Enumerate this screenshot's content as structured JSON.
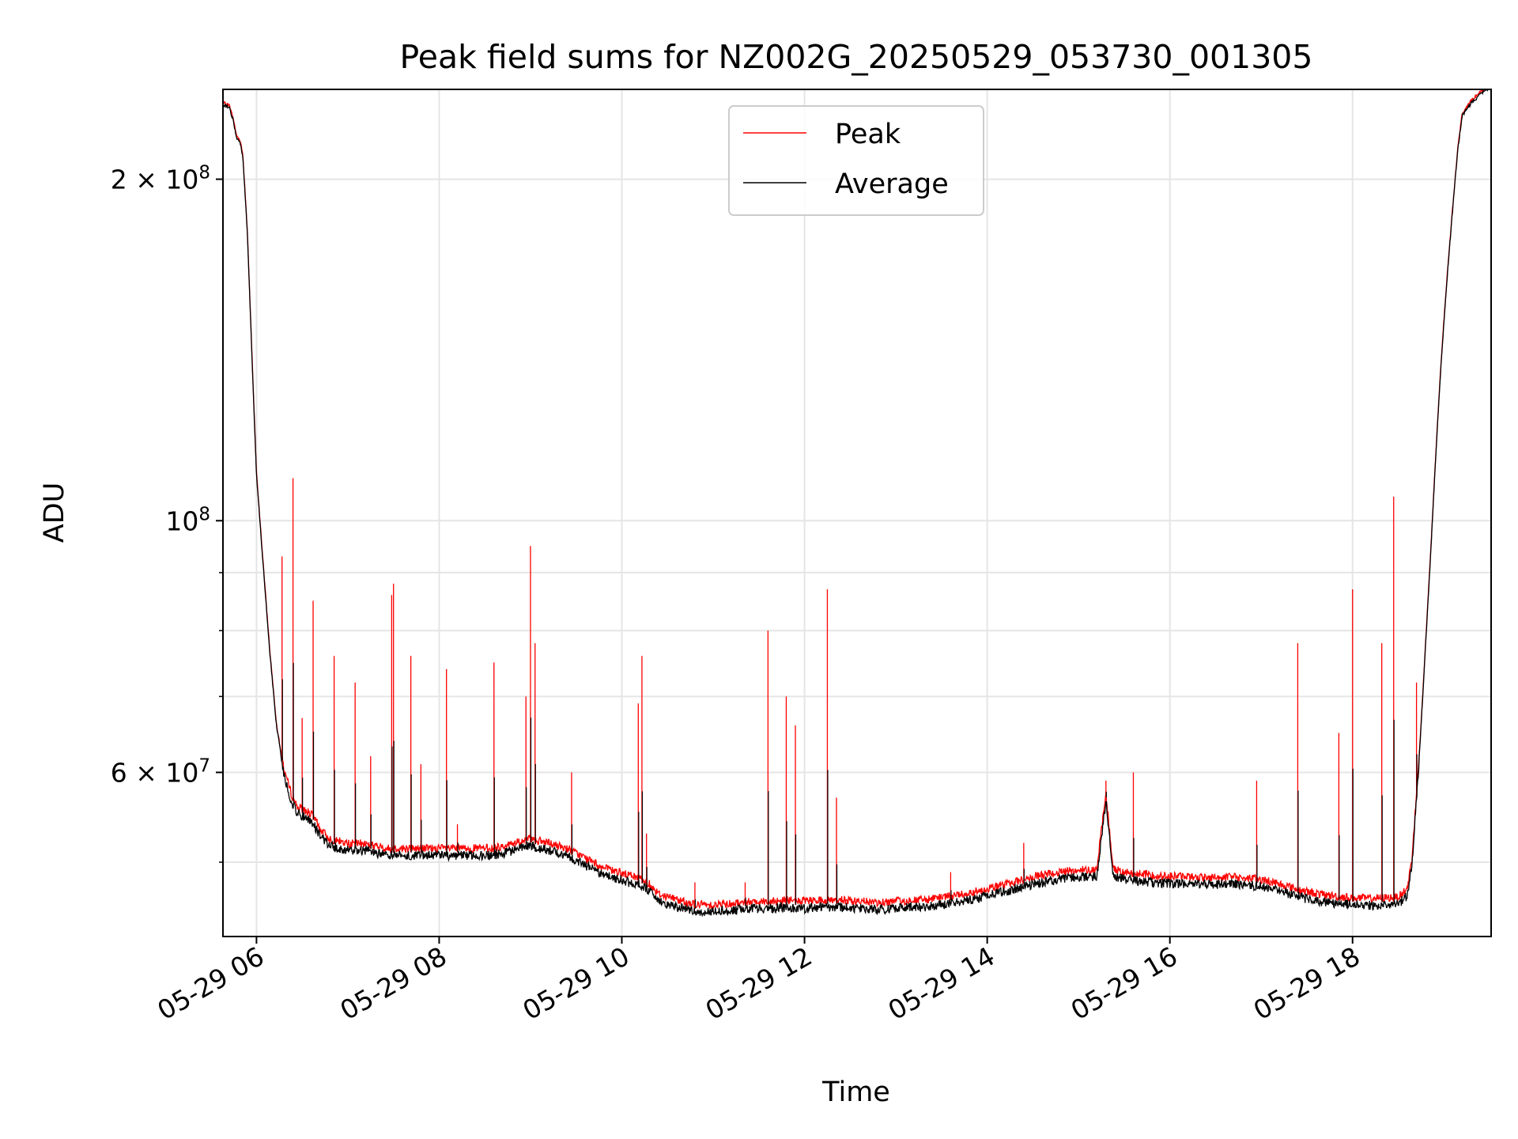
{
  "chart_data": {
    "type": "line",
    "title": "Peak field sums for NZ002G_20250529_053730_001305",
    "xlabel": "Time",
    "ylabel": "ADU",
    "yscale": "log",
    "ylim": [
      43000000,
      240000000
    ],
    "xlim_hours": [
      5.633,
      19.517
    ],
    "grid": true,
    "legend": {
      "position": "upper center",
      "entries": [
        "Peak",
        "Average"
      ]
    },
    "x_ticks": [
      {
        "label": "05-29 06",
        "hour": 6
      },
      {
        "label": "05-29 08",
        "hour": 8
      },
      {
        "label": "05-29 10",
        "hour": 10
      },
      {
        "label": "05-29 12",
        "hour": 12
      },
      {
        "label": "05-29 14",
        "hour": 14
      },
      {
        "label": "05-29 16",
        "hour": 16
      },
      {
        "label": "05-29 18",
        "hour": 18
      }
    ],
    "y_ticks": [
      {
        "mantissa": "2",
        "times": "×",
        "base": "10",
        "exp": "8",
        "value": 200000000
      },
      {
        "mantissa": "",
        "times": "",
        "base": "10",
        "exp": "8",
        "value": 100000000
      },
      {
        "mantissa": "6",
        "times": "×",
        "base": "10",
        "exp": "7",
        "value": 60000000
      }
    ],
    "y_minor_ticks": [
      50000000,
      70000000,
      80000000,
      90000000
    ],
    "series": [
      {
        "name": "Average",
        "color": "#000000",
        "points": [
          [
            5.633,
            233000000
          ],
          [
            5.7,
            232000000
          ],
          [
            5.75,
            225000000
          ],
          [
            5.78,
            218000000
          ],
          [
            5.82,
            216000000
          ],
          [
            5.85,
            210000000
          ],
          [
            5.9,
            180000000
          ],
          [
            5.95,
            140000000
          ],
          [
            6.0,
            110000000
          ],
          [
            6.08,
            90000000
          ],
          [
            6.15,
            76000000
          ],
          [
            6.22,
            66000000
          ],
          [
            6.3,
            60000000
          ],
          [
            6.38,
            57000000
          ],
          [
            6.45,
            55500000
          ],
          [
            6.55,
            55000000
          ],
          [
            6.62,
            54500000
          ],
          [
            6.7,
            53000000
          ],
          [
            6.8,
            52000000
          ],
          [
            7.0,
            51500000
          ],
          [
            7.2,
            51500000
          ],
          [
            7.4,
            51000000
          ],
          [
            7.6,
            51000000
          ],
          [
            7.8,
            51000000
          ],
          [
            8.0,
            51000000
          ],
          [
            8.2,
            51000000
          ],
          [
            8.4,
            51000000
          ],
          [
            8.6,
            51000000
          ],
          [
            8.8,
            51500000
          ],
          [
            9.0,
            52000000
          ],
          [
            9.2,
            51500000
          ],
          [
            9.4,
            51000000
          ],
          [
            9.6,
            50000000
          ],
          [
            9.8,
            49000000
          ],
          [
            10.0,
            48500000
          ],
          [
            10.2,
            48000000
          ],
          [
            10.3,
            47500000
          ],
          [
            10.4,
            46500000
          ],
          [
            10.6,
            46000000
          ],
          [
            10.8,
            45500000
          ],
          [
            11.0,
            45500000
          ],
          [
            11.2,
            45600000
          ],
          [
            11.4,
            45800000
          ],
          [
            11.6,
            45800000
          ],
          [
            11.8,
            45900000
          ],
          [
            12.0,
            45800000
          ],
          [
            12.2,
            45900000
          ],
          [
            12.4,
            45900000
          ],
          [
            12.6,
            45800000
          ],
          [
            12.8,
            45700000
          ],
          [
            13.0,
            45800000
          ],
          [
            13.2,
            45900000
          ],
          [
            13.4,
            46000000
          ],
          [
            13.6,
            46300000
          ],
          [
            13.8,
            46600000
          ],
          [
            14.0,
            47000000
          ],
          [
            14.2,
            47400000
          ],
          [
            14.4,
            47900000
          ],
          [
            14.6,
            48300000
          ],
          [
            14.8,
            48600000
          ],
          [
            15.0,
            48800000
          ],
          [
            15.2,
            48900000
          ],
          [
            15.3,
            57000000
          ],
          [
            15.38,
            48900000
          ],
          [
            15.5,
            48600000
          ],
          [
            15.7,
            48400000
          ],
          [
            15.9,
            48200000
          ],
          [
            16.1,
            48200000
          ],
          [
            16.3,
            48100000
          ],
          [
            16.5,
            48100000
          ],
          [
            16.7,
            48100000
          ],
          [
            16.9,
            48000000
          ],
          [
            17.1,
            47700000
          ],
          [
            17.3,
            47200000
          ],
          [
            17.5,
            46700000
          ],
          [
            17.7,
            46400000
          ],
          [
            17.9,
            46200000
          ],
          [
            18.1,
            46100000
          ],
          [
            18.3,
            46100000
          ],
          [
            18.5,
            46200000
          ],
          [
            18.6,
            47000000
          ],
          [
            18.65,
            50000000
          ],
          [
            18.7,
            57000000
          ],
          [
            18.75,
            66000000
          ],
          [
            18.8,
            78000000
          ],
          [
            18.85,
            92000000
          ],
          [
            18.9,
            110000000
          ],
          [
            18.95,
            130000000
          ],
          [
            19.0,
            150000000
          ],
          [
            19.05,
            170000000
          ],
          [
            19.1,
            190000000
          ],
          [
            19.15,
            212000000
          ],
          [
            19.2,
            228000000
          ],
          [
            19.3,
            234000000
          ],
          [
            19.4,
            238000000
          ],
          [
            19.517,
            242000000
          ]
        ]
      },
      {
        "name": "Peak",
        "color": "#ff0000",
        "spikes": [
          [
            6.28,
            93000000
          ],
          [
            6.4,
            109000000
          ],
          [
            6.5,
            67000000
          ],
          [
            6.62,
            85000000
          ],
          [
            6.85,
            76000000
          ],
          [
            7.08,
            72000000
          ],
          [
            7.25,
            62000000
          ],
          [
            7.48,
            86000000
          ],
          [
            7.5,
            88000000
          ],
          [
            7.69,
            76000000
          ],
          [
            7.8,
            61000000
          ],
          [
            8.08,
            74000000
          ],
          [
            8.2,
            54000000
          ],
          [
            8.6,
            75000000
          ],
          [
            8.95,
            70000000
          ],
          [
            9.0,
            95000000
          ],
          [
            9.05,
            78000000
          ],
          [
            9.45,
            60000000
          ],
          [
            10.18,
            69000000
          ],
          [
            10.22,
            76000000
          ],
          [
            10.27,
            53000000
          ],
          [
            10.8,
            48000000
          ],
          [
            11.35,
            48000000
          ],
          [
            11.6,
            80000000
          ],
          [
            11.8,
            70000000
          ],
          [
            11.9,
            66000000
          ],
          [
            12.25,
            87000000
          ],
          [
            12.35,
            57000000
          ],
          [
            13.6,
            49000000
          ],
          [
            14.4,
            52000000
          ],
          [
            15.3,
            59000000
          ],
          [
            15.6,
            60000000
          ],
          [
            16.95,
            59000000
          ],
          [
            17.4,
            78000000
          ],
          [
            17.85,
            65000000
          ],
          [
            18.0,
            87000000
          ],
          [
            18.32,
            78000000
          ],
          [
            18.45,
            105000000
          ],
          [
            18.7,
            72000000
          ]
        ]
      }
    ]
  }
}
